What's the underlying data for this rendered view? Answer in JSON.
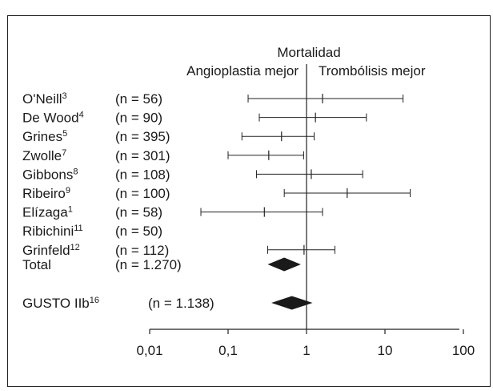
{
  "chart_data": {
    "type": "forest",
    "title": "Mortalidad",
    "left_label": "Angioplastia mejor",
    "right_label": "Trombólisis mejor",
    "x_scale": "log",
    "xlim": [
      0.01,
      100
    ],
    "reference_line": 1,
    "x_ticks": [
      {
        "value": 0.01,
        "label": "0,01"
      },
      {
        "value": 0.1,
        "label": "0,1"
      },
      {
        "value": 1,
        "label": "1"
      },
      {
        "value": 10,
        "label": "10"
      },
      {
        "value": 100,
        "label": "100"
      }
    ],
    "studies": [
      {
        "name": "O'Neill",
        "ref": "3",
        "n": "(n = 56)",
        "estimate": 1.6,
        "ci_low": 0.18,
        "ci_high": 17
      },
      {
        "name": "De Wood",
        "ref": "4",
        "n": "(n = 90)",
        "estimate": 1.3,
        "ci_low": 0.25,
        "ci_high": 5.8
      },
      {
        "name": "Grines",
        "ref": "5",
        "n": "(n = 395)",
        "estimate": 0.48,
        "ci_low": 0.15,
        "ci_high": 1.25
      },
      {
        "name": "Zwolle",
        "ref": "7",
        "n": "(n = 301)",
        "estimate": 0.33,
        "ci_low": 0.1,
        "ci_high": 0.92
      },
      {
        "name": "Gibbons",
        "ref": "8",
        "n": "(n = 108)",
        "estimate": 1.15,
        "ci_low": 0.23,
        "ci_high": 5.2
      },
      {
        "name": "Ribeiro",
        "ref": "9",
        "n": "(n = 100)",
        "estimate": 3.3,
        "ci_low": 0.52,
        "ci_high": 21
      },
      {
        "name": "Elízaga",
        "ref": "1",
        "n": "(n = 58)",
        "estimate": 0.29,
        "ci_low": 0.045,
        "ci_high": 1.6
      },
      {
        "name": "Ribichini",
        "ref": "11",
        "n": "(n = 50)",
        "estimate": null,
        "ci_low": null,
        "ci_high": null
      },
      {
        "name": "Grinfeld",
        "ref": "12",
        "n": "(n = 112)",
        "estimate": 0.93,
        "ci_low": 0.32,
        "ci_high": 2.3
      }
    ],
    "pooled": [
      {
        "name": "Total",
        "ref": "",
        "n": "(n = 1.270)",
        "estimate": 0.52,
        "ci_low": 0.33,
        "ci_high": 0.82
      },
      {
        "name": "GUSTO IIb",
        "ref": "16",
        "n": "(n = 1.138)",
        "estimate": 0.65,
        "ci_low": 0.37,
        "ci_high": 1.15
      }
    ]
  }
}
